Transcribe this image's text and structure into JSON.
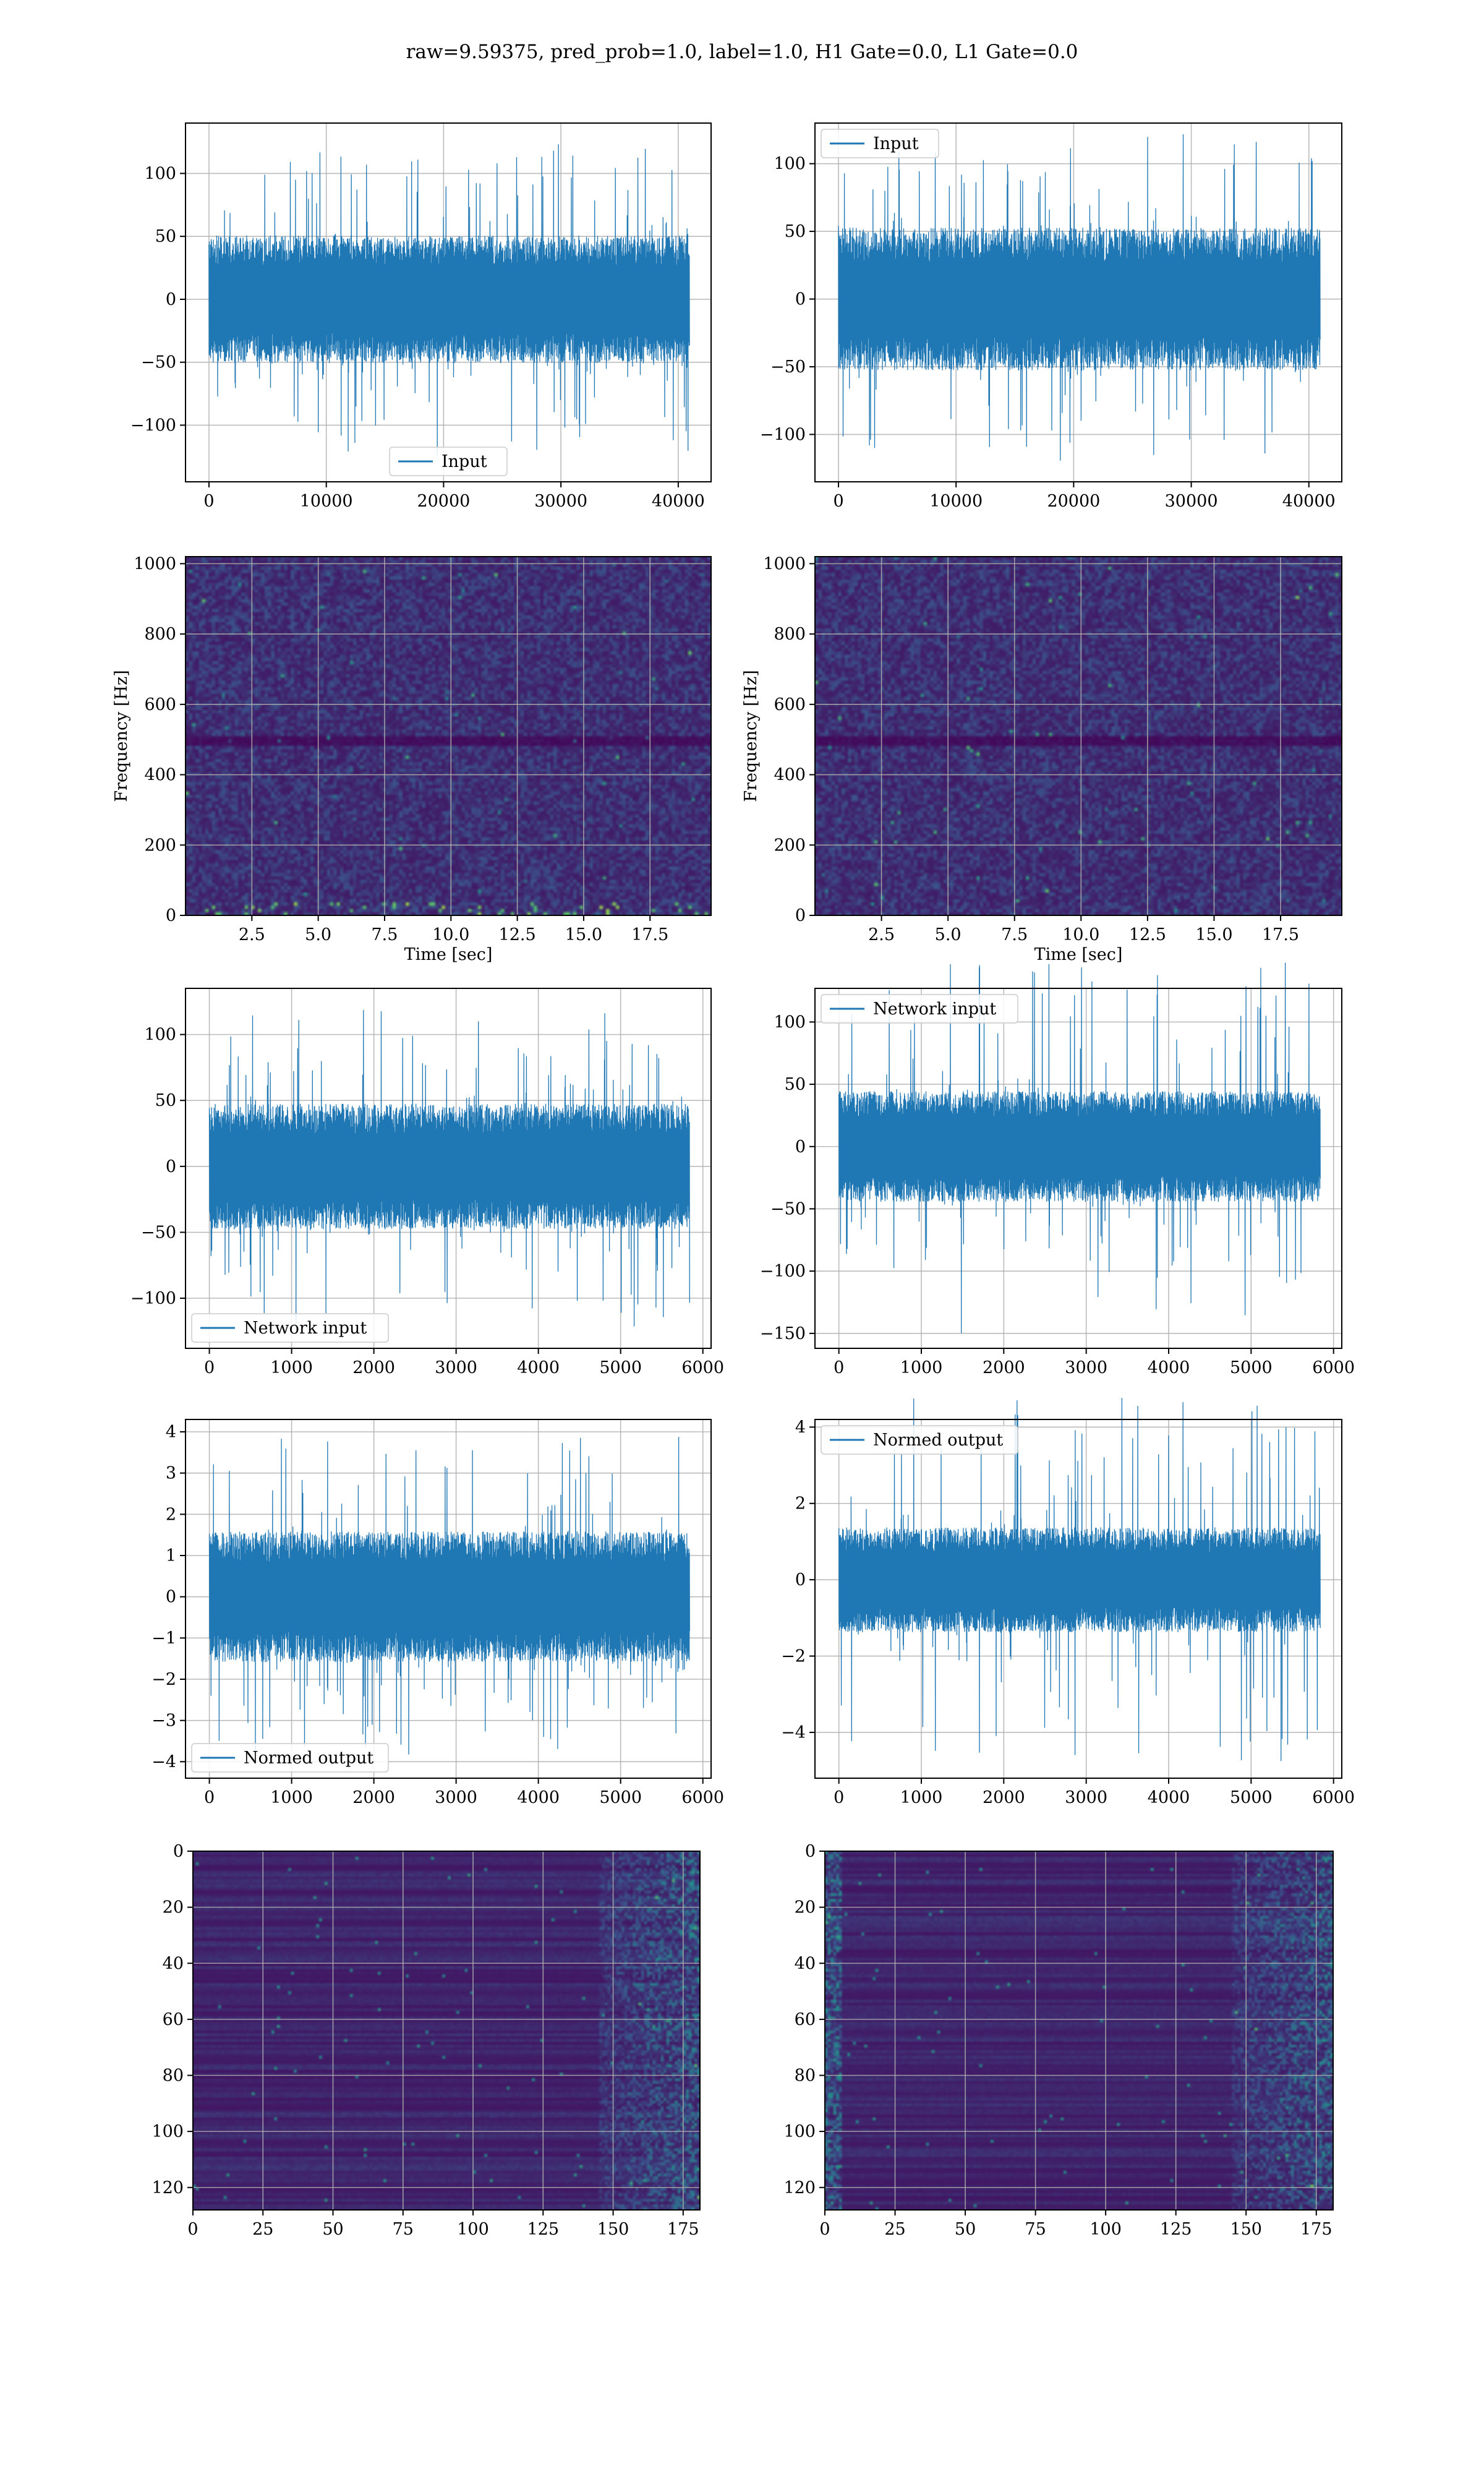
{
  "figure": {
    "suptitle": "raw=9.59375, pred_prob=1.0, label=1.0, H1 Gate=0.0, L1 Gate=0.0"
  },
  "colors": {
    "line": "#1f77b4",
    "grid": "#b0b0b0",
    "axes": "#000000",
    "heatmap": [
      "#440154",
      "#3b528b",
      "#21918c",
      "#5ec962",
      "#fde725"
    ]
  },
  "chart_data": [
    {
      "id": "input-h1",
      "type": "line",
      "row": 0,
      "col": 0,
      "title": "",
      "xlabel": "",
      "ylabel": "",
      "xlim": [
        -2000,
        42800
      ],
      "ylim": [
        -145,
        140
      ],
      "xticks": [
        0,
        10000,
        20000,
        30000,
        40000
      ],
      "yticks": [
        -100,
        -50,
        0,
        50,
        100
      ],
      "grid": true,
      "legend": "lower center",
      "series": [
        {
          "name": "Input",
          "n": 40960,
          "core": 48,
          "peak": 125
        }
      ]
    },
    {
      "id": "input-l1",
      "type": "line",
      "row": 0,
      "col": 1,
      "title": "",
      "xlabel": "",
      "ylabel": "",
      "xlim": [
        -2000,
        42800
      ],
      "ylim": [
        -135,
        130
      ],
      "xticks": [
        0,
        10000,
        20000,
        30000,
        40000
      ],
      "yticks": [
        -100,
        -50,
        0,
        50,
        100
      ],
      "grid": true,
      "legend": "upper left",
      "series": [
        {
          "name": "Input",
          "n": 40960,
          "core": 50,
          "peak": 122
        }
      ]
    },
    {
      "id": "spectrogram-h1",
      "type": "heatmap",
      "row": 1,
      "col": 0,
      "xlabel": "Time [sec]",
      "ylabel": "Frequency [Hz]",
      "xlim": [
        0,
        19.8
      ],
      "ylim": [
        0,
        1020
      ],
      "xticks": [
        2.5,
        5.0,
        7.5,
        10.0,
        12.5,
        15.0,
        17.5
      ],
      "xticklabels": [
        "2.5",
        "5.0",
        "7.5",
        "10.0",
        "12.5",
        "15.0",
        "17.5"
      ],
      "yticks": [
        0,
        200,
        400,
        600,
        800,
        1000
      ],
      "grid": true,
      "features": "noise with dark line near 500 Hz and bright spots near 40 Hz"
    },
    {
      "id": "spectrogram-l1",
      "type": "heatmap",
      "row": 1,
      "col": 1,
      "xlabel": "Time [sec]",
      "ylabel": "Frequency [Hz]",
      "xlim": [
        0,
        19.8
      ],
      "ylim": [
        0,
        1020
      ],
      "xticks": [
        2.5,
        5.0,
        7.5,
        10.0,
        12.5,
        15.0,
        17.5
      ],
      "xticklabels": [
        "2.5",
        "5.0",
        "7.5",
        "10.0",
        "12.5",
        "15.0",
        "17.5"
      ],
      "yticks": [
        0,
        200,
        400,
        600,
        800,
        1000
      ],
      "grid": true,
      "features": "noise with dark line near 500 Hz and scattered bright spots"
    },
    {
      "id": "network-input-h1",
      "type": "line",
      "row": 2,
      "col": 0,
      "xlim": [
        -290,
        6100
      ],
      "ylim": [
        -138,
        135
      ],
      "xticks": [
        0,
        1000,
        2000,
        3000,
        4000,
        5000,
        6000
      ],
      "yticks": [
        -100,
        -50,
        0,
        50,
        100
      ],
      "grid": true,
      "legend": "lower left",
      "series": [
        {
          "name": "Network input",
          "n": 5840,
          "core": 45,
          "peak": 122
        }
      ]
    },
    {
      "id": "network-input-l1",
      "type": "line",
      "row": 2,
      "col": 1,
      "xlim": [
        -290,
        6100
      ],
      "ylim": [
        -162,
        127
      ],
      "xticks": [
        0,
        1000,
        2000,
        3000,
        4000,
        5000,
        6000
      ],
      "yticks": [
        -150,
        -100,
        -50,
        0,
        50,
        100
      ],
      "grid": true,
      "legend": "upper left",
      "series": [
        {
          "name": "Network input",
          "n": 5840,
          "core": 42,
          "peak": 150
        }
      ]
    },
    {
      "id": "normed-output-h1",
      "type": "line",
      "row": 3,
      "col": 0,
      "xlim": [
        -290,
        6100
      ],
      "ylim": [
        -4.4,
        4.3
      ],
      "xticks": [
        0,
        1000,
        2000,
        3000,
        4000,
        5000,
        6000
      ],
      "yticks": [
        -4,
        -3,
        -2,
        -1,
        0,
        1,
        2,
        3,
        4
      ],
      "grid": true,
      "legend": "lower left",
      "series": [
        {
          "name": "Normed output",
          "n": 5840,
          "core": 1.5,
          "peak": 3.9
        }
      ]
    },
    {
      "id": "normed-output-l1",
      "type": "line",
      "row": 3,
      "col": 1,
      "xlim": [
        -290,
        6100
      ],
      "ylim": [
        -5.2,
        4.2
      ],
      "xticks": [
        0,
        1000,
        2000,
        3000,
        4000,
        5000,
        6000
      ],
      "yticks": [
        -4,
        -2,
        0,
        2,
        4
      ],
      "grid": true,
      "legend": "upper left",
      "series": [
        {
          "name": "Normed output",
          "n": 5840,
          "core": 1.3,
          "peak": 4.8
        }
      ]
    },
    {
      "id": "feature-map-h1",
      "type": "heatmap",
      "row": 4,
      "col": 0,
      "xlim": [
        0,
        181
      ],
      "ylim": [
        128,
        0
      ],
      "xticks": [
        0,
        25,
        50,
        75,
        100,
        125,
        150,
        175
      ],
      "yticks": [
        0,
        20,
        40,
        60,
        80,
        100,
        120
      ],
      "grid": true,
      "features": "horizontal banding with bright activations beyond x=150"
    },
    {
      "id": "feature-map-l1",
      "type": "heatmap",
      "row": 4,
      "col": 1,
      "xlim": [
        0,
        181
      ],
      "ylim": [
        128,
        0
      ],
      "xticks": [
        0,
        25,
        50,
        75,
        100,
        125,
        150,
        175
      ],
      "yticks": [
        0,
        20,
        40,
        60,
        80,
        100,
        120
      ],
      "grid": true,
      "features": "horizontal banding with bright activations near x=0 and beyond x=145"
    }
  ]
}
